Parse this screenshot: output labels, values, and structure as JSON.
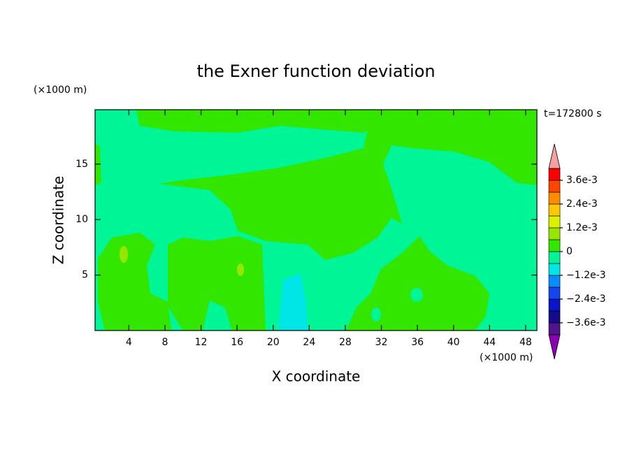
{
  "chart_data": {
    "type": "contour",
    "title": "the Exner function deviation",
    "xlabel": "X coordinate",
    "ylabel": "Z coordinate",
    "xunit": "(×1000 m)",
    "yunit": "(×1000 m)",
    "time_label": "t=172800 s",
    "xlim": [
      0.25,
      49.25
    ],
    "ylim": [
      0,
      19.9
    ],
    "xticks": [
      4,
      8,
      12,
      16,
      20,
      24,
      28,
      32,
      36,
      40,
      44,
      48
    ],
    "yticks": [
      5,
      10,
      15
    ],
    "colorbar": {
      "levels": [
        -0.0042,
        -0.0036,
        -0.003,
        -0.0024,
        -0.0018,
        -0.0012,
        -0.0006,
        0,
        0.0006,
        0.0012,
        0.0018,
        0.0024,
        0.003,
        0.0036,
        0.0042
      ],
      "colors": [
        "#50148c",
        "#140a8c",
        "#0a14c8",
        "#1446f0",
        "#0a8cff",
        "#00e6e6",
        "#00f596",
        "#32e600",
        "#96e600",
        "#dcf000",
        "#ffc800",
        "#ff8c00",
        "#ff4600",
        "#ff0000"
      ],
      "extend_colors": [
        "#8c00b4",
        "#f5a0a0"
      ],
      "ticks": [
        {
          "value": 0.0036,
          "label": "3.6e-3"
        },
        {
          "value": 0.0024,
          "label": "2.4e-3"
        },
        {
          "value": 0.0012,
          "label": "1.2e-3"
        },
        0,
        {
          "value": -0.0012,
          "label": "−1.2e-3"
        },
        {
          "value": -0.0024,
          "label": "−2.4e-3"
        },
        {
          "value": -0.0036,
          "label": "−3.6e-3"
        }
      ]
    }
  }
}
